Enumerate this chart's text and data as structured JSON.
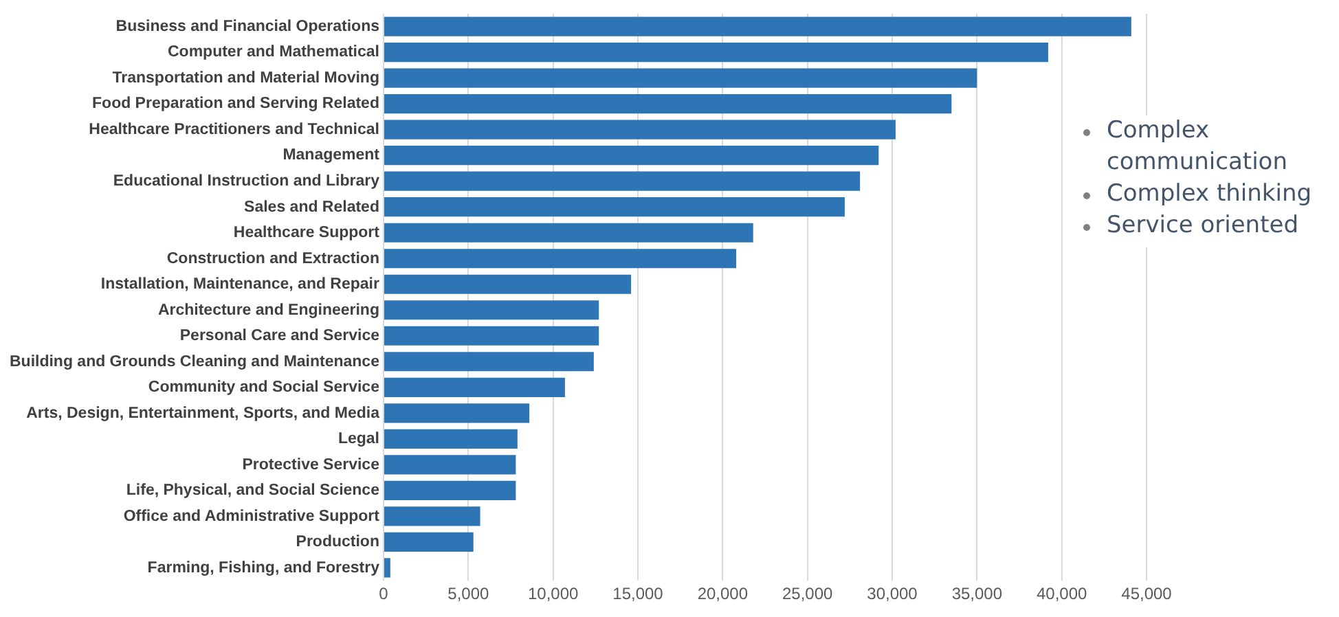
{
  "chart_data": {
    "type": "bar",
    "orientation": "horizontal",
    "categories": [
      "Business and Financial Operations",
      "Computer and Mathematical",
      "Transportation and Material Moving",
      "Food Preparation and Serving Related",
      "Healthcare Practitioners and Technical",
      "Management",
      "Educational Instruction and Library",
      "Sales and Related",
      "Healthcare Support",
      "Construction and Extraction",
      "Installation, Maintenance, and Repair",
      "Architecture and Engineering",
      "Personal Care and Service",
      "Building and Grounds Cleaning and Maintenance",
      "Community and Social Service",
      "Arts, Design, Entertainment, Sports, and Media",
      "Legal",
      "Protective Service",
      "Life, Physical, and Social Science",
      "Office and Administrative Support",
      "Production",
      "Farming, Fishing, and Forestry"
    ],
    "values": [
      44100,
      39200,
      35000,
      33500,
      30200,
      29200,
      28100,
      27200,
      21800,
      20800,
      14600,
      12700,
      12700,
      12400,
      10700,
      8600,
      7900,
      7800,
      7800,
      5700,
      5300,
      400
    ],
    "color": "#2e75b6",
    "xlim": [
      0,
      45000
    ],
    "xticks": [
      {
        "value": 0,
        "label": "0"
      },
      {
        "value": 5000,
        "label": "5,000"
      },
      {
        "value": 10000,
        "label": "10,000"
      },
      {
        "value": 15000,
        "label": "15,000"
      },
      {
        "value": 20000,
        "label": "20,000"
      },
      {
        "value": 25000,
        "label": "25,000"
      },
      {
        "value": 30000,
        "label": "30,000"
      },
      {
        "value": 35000,
        "label": "35,000"
      },
      {
        "value": 40000,
        "label": "40,000"
      },
      {
        "value": 45000,
        "label": "45,000"
      }
    ],
    "grid": "x",
    "annotations": [
      "Complex communication",
      "Complex thinking",
      "Service oriented"
    ]
  }
}
